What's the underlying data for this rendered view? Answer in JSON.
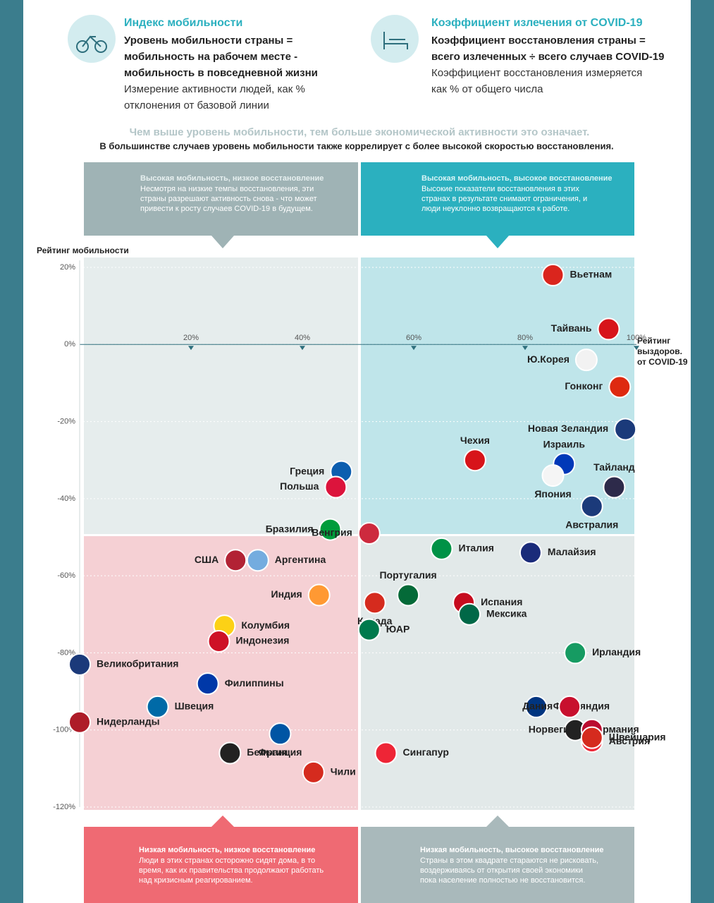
{
  "header": {
    "mobility": {
      "title": "Индекс мобильности",
      "formula": [
        "Уровень мобильности страны =",
        "мобильность на рабочем месте -",
        "мобильность в повседневной жизни"
      ],
      "note": [
        "Измерение активности людей, как %",
        "отклонения от базовой линии"
      ]
    },
    "recovery": {
      "title": "Коэффициент излечения от COVID-19",
      "formula": [
        "Коэффициент восстановления страны =",
        "всего излеченных ÷ всего случаев COVID-19"
      ],
      "note": [
        "Коэффициент восстановления измеряется",
        "как % от общего числа"
      ]
    }
  },
  "lead": "Чем выше уровень мобильности, тем больше экономической активности это означает.",
  "lead2": "В большинстве случаев уровень мобильности также коррелирует с более высокой скоростью восстановления.",
  "quadrants": [
    {
      "title": "Высокая мобильность, низкое восстановление",
      "text": [
        "Несмотря на низкие темпы восстановления, эти",
        "страны разрешают активность снова - что может",
        "привести к росту случаев COVID-19 в будущем."
      ]
    },
    {
      "title": "Высокая мобильность, высокое восстановление",
      "text": [
        "Высокие показатели восстановления в этих",
        "странах в результате снимают ограничения, и",
        "люди неуклонно возвращаются к работе."
      ]
    },
    {
      "title": "Низкая мобильность, низкое восстановление",
      "text": [
        "Люди в этих странах осторожно сидят дома, в то",
        "время, как их правительства продолжают работать",
        "над кризисным реагированием."
      ]
    },
    {
      "title": "Низкая мобильность, высокое восстановление",
      "text": [
        "Страны в этом квадрате стараются не рисковать,",
        "воздерживаясь от открытия своей экономики",
        "пока население полностью не восстановится."
      ]
    }
  ],
  "chart_data": {
    "type": "scatter",
    "y_label": "Рейтинг мобильности",
    "x_label": [
      "Рейтинг",
      "выздоров.",
      "от COVID-19"
    ],
    "xlim": [
      0,
      100
    ],
    "ylim": [
      -120,
      20
    ],
    "xticks": [
      {
        "value": 20,
        "label": "20%"
      },
      {
        "value": 40,
        "label": "40%"
      },
      {
        "value": 60,
        "label": "60%"
      },
      {
        "value": 80,
        "label": "80%"
      },
      {
        "value": 100,
        "label": "100%"
      }
    ],
    "yticks": [
      {
        "value": 20,
        "label": "20%"
      },
      {
        "value": 0,
        "label": "0%"
      },
      {
        "value": -20,
        "label": "-20%"
      },
      {
        "value": -40,
        "label": "-40%"
      },
      {
        "value": -60,
        "label": "-60%"
      },
      {
        "value": -80,
        "label": "-80%"
      },
      {
        "value": -100,
        "label": "-100%"
      },
      {
        "value": -120,
        "label": "-120%"
      }
    ],
    "labels": [
      "Вьетнам",
      "Тайвань",
      "Ю.Корея",
      "Гонконг",
      "Новая Зеландия",
      "Израиль",
      "Чехия",
      "Япония",
      "Тайланд",
      "Австралия",
      "Греция",
      "Польша",
      "Бразилия",
      "Венгрия",
      "Италия",
      "Малайзия",
      "США",
      "Аргентина",
      "Португалия",
      "Индия",
      "Канада",
      "Испания",
      "Мексика",
      "ЮАР",
      "Колумбия",
      "Индонезия",
      "Ирландия",
      "Великобритания",
      "Филиппины",
      "Швеция",
      "Финляндия",
      "Дания",
      "Нидерланды",
      "Германия",
      "Норвегия",
      "Австрия",
      "Швейцария",
      "Франция",
      "Бельгия",
      "Сингапур",
      "Чили"
    ],
    "x": [
      85,
      95,
      91,
      97,
      98,
      87,
      71,
      85,
      96,
      92,
      47,
      46,
      45,
      52,
      65,
      81,
      28,
      32,
      59,
      43,
      53,
      69,
      70,
      52,
      26,
      25,
      89,
      0,
      23,
      14,
      82,
      88,
      0,
      89,
      92,
      92,
      92,
      36,
      27,
      55,
      42
    ],
    "values": [
      18,
      4,
      -4,
      -11,
      -22,
      -31,
      -30,
      -34,
      -37,
      -42,
      -33,
      -37,
      -48,
      -49,
      -53,
      -54,
      -56,
      -56,
      -65,
      -65,
      -67,
      -67,
      -70,
      -74,
      -73,
      -77,
      -80,
      -83,
      -88,
      -94,
      -94,
      -94,
      -98,
      -100,
      -100,
      -103,
      -102,
      -101,
      -106,
      -106,
      -111
    ],
    "colors": [
      "#da251d",
      "#d7141a",
      "#f2f2f2",
      "#de2910",
      "#1b3a7a",
      "#0038b8",
      "#d7141a",
      "#f5f5f5",
      "#2d2a4a",
      "#1b3a7a",
      "#0d5eaf",
      "#dc143c",
      "#009c3b",
      "#cd2a3e",
      "#009246",
      "#1a2b7a",
      "#b22234",
      "#74acdf",
      "#046a38",
      "#ff9933",
      "#d52b1e",
      "#c60b1e",
      "#006847",
      "#007a4d",
      "#fcd116",
      "#ce1126",
      "#169b62",
      "#1b3a7a",
      "#0038a8",
      "#006aa7",
      "#003580",
      "#c8102e",
      "#ae1c28",
      "#222222",
      "#ba0c2f",
      "#ed2939",
      "#d52b1e",
      "#0055a4",
      "#222222",
      "#ee2536",
      "#d52b1e"
    ]
  }
}
